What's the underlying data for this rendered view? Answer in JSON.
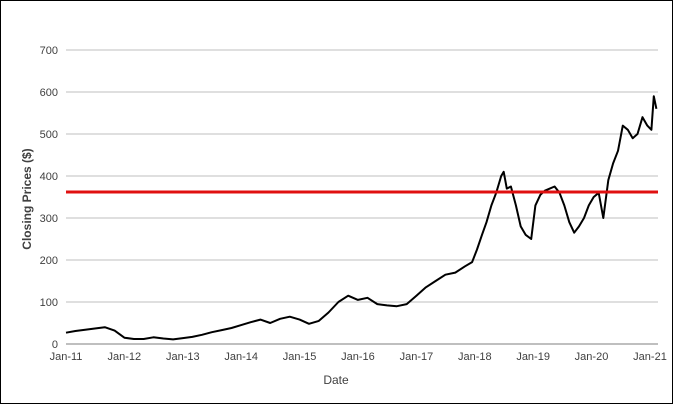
{
  "chart_data": {
    "type": "line",
    "title": "",
    "xlabel": "Date",
    "ylabel": "Closing Prices ($)",
    "ylim": [
      0,
      700
    ],
    "yticks": [
      0,
      100,
      200,
      300,
      400,
      500,
      600,
      700
    ],
    "xlim": [
      "2011-01-01",
      "2021-02-20"
    ],
    "xticks": [
      {
        "date": "2011-01-01",
        "label": "Jan-11"
      },
      {
        "date": "2012-01-01",
        "label": "Jan-12"
      },
      {
        "date": "2013-01-01",
        "label": "Jan-13"
      },
      {
        "date": "2014-01-01",
        "label": "Jan-14"
      },
      {
        "date": "2015-01-01",
        "label": "Jan-15"
      },
      {
        "date": "2016-01-01",
        "label": "Jan-16"
      },
      {
        "date": "2017-01-01",
        "label": "Jan-17"
      },
      {
        "date": "2018-01-01",
        "label": "Jan-18"
      },
      {
        "date": "2019-01-01",
        "label": "Jan-19"
      },
      {
        "date": "2020-01-01",
        "label": "Jan-20"
      },
      {
        "date": "2021-01-01",
        "label": "Jan-21"
      }
    ],
    "grid": {
      "horizontal": true,
      "vertical": false
    },
    "legend": "none",
    "series": [
      {
        "color": "#000000",
        "x": [
          "2011-01-01",
          "2011-03-01",
          "2011-05-01",
          "2011-07-01",
          "2011-09-01",
          "2011-11-01",
          "2012-01-01",
          "2012-03-01",
          "2012-05-01",
          "2012-07-01",
          "2012-09-01",
          "2012-11-01",
          "2013-01-01",
          "2013-03-01",
          "2013-05-01",
          "2013-07-01",
          "2013-09-01",
          "2013-11-01",
          "2014-01-01",
          "2014-03-01",
          "2014-05-01",
          "2014-07-01",
          "2014-09-01",
          "2014-11-01",
          "2015-01-01",
          "2015-03-01",
          "2015-05-01",
          "2015-07-01",
          "2015-09-01",
          "2015-11-01",
          "2016-01-01",
          "2016-03-01",
          "2016-05-01",
          "2016-07-01",
          "2016-09-01",
          "2016-11-01",
          "2017-01-01",
          "2017-03-01",
          "2017-05-01",
          "2017-07-01",
          "2017-09-01",
          "2017-11-01",
          "2017-12-15",
          "2018-01-15",
          "2018-02-15",
          "2018-03-15",
          "2018-04-15",
          "2018-05-15",
          "2018-06-15",
          "2018-07-01",
          "2018-07-20",
          "2018-08-15",
          "2018-09-15",
          "2018-10-15",
          "2018-11-15",
          "2018-12-20",
          "2019-01-15",
          "2019-02-15",
          "2019-03-15",
          "2019-04-15",
          "2019-05-15",
          "2019-06-15",
          "2019-07-15",
          "2019-08-15",
          "2019-09-15",
          "2019-10-15",
          "2019-11-15",
          "2019-12-15",
          "2020-01-15",
          "2020-02-15",
          "2020-03-15",
          "2020-04-15",
          "2020-05-15",
          "2020-06-15",
          "2020-07-15",
          "2020-08-15",
          "2020-09-15",
          "2020-10-15",
          "2020-11-15",
          "2020-12-15",
          "2021-01-10",
          "2021-01-25",
          "2021-02-10"
        ],
        "values": [
          27,
          31,
          34,
          37,
          40,
          32,
          15,
          12,
          12,
          16,
          13,
          11,
          14,
          17,
          22,
          28,
          33,
          38,
          45,
          52,
          58,
          50,
          60,
          65,
          58,
          48,
          55,
          75,
          100,
          115,
          105,
          110,
          95,
          92,
          90,
          95,
          115,
          135,
          150,
          165,
          170,
          185,
          195,
          225,
          260,
          290,
          330,
          360,
          400,
          410,
          370,
          375,
          330,
          280,
          260,
          250,
          330,
          355,
          365,
          370,
          375,
          360,
          330,
          290,
          265,
          280,
          300,
          330,
          350,
          360,
          300,
          390,
          430,
          460,
          520,
          510,
          490,
          500,
          540,
          520,
          510,
          590,
          560
        ]
      }
    ],
    "reference_lines": [
      {
        "orientation": "horizontal",
        "value": 362,
        "color": "#e01010"
      }
    ]
  }
}
